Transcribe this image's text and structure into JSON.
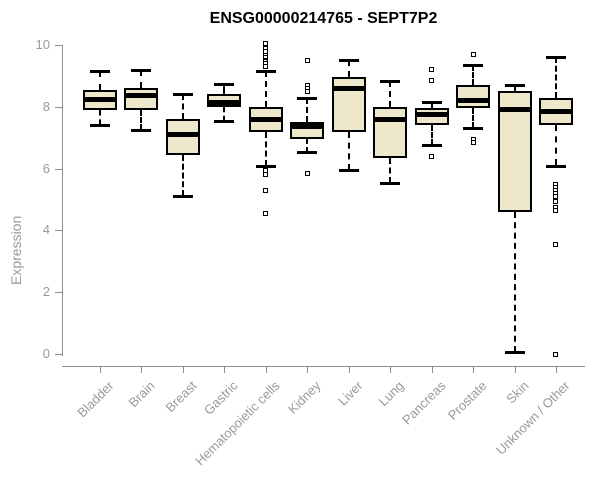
{
  "colors": {
    "box_fill": "#EDE7CC",
    "box_border": "#000000",
    "axis": "#8c8c8c",
    "tick_label": "#9a9a9a",
    "title": "#000000",
    "background": "#ffffff"
  },
  "chart_data": {
    "type": "boxplot",
    "title": "ENSG00000214765 - SEPT7P2",
    "ylabel": "Expression",
    "xlabel": "",
    "ylim": [
      0,
      10
    ],
    "yticks": [
      0,
      2,
      4,
      6,
      8,
      10
    ],
    "grid": false,
    "legend": false,
    "categories": [
      "Bladder",
      "Brain",
      "Breast",
      "Gastric",
      "Hematopoietic cells",
      "Kidney",
      "Liver",
      "Lung",
      "Pancreas",
      "Prostate",
      "Skin",
      "Unknown / Other"
    ],
    "boxes": [
      {
        "label": "Bladder",
        "whislo": 7.4,
        "q1": 7.9,
        "med": 8.25,
        "q3": 8.55,
        "whishi": 9.15,
        "outliers": []
      },
      {
        "label": "Brain",
        "whislo": 7.25,
        "q1": 7.9,
        "med": 8.35,
        "q3": 8.6,
        "whishi": 9.2,
        "outliers": []
      },
      {
        "label": "Breast",
        "whislo": 5.1,
        "q1": 6.45,
        "med": 7.1,
        "q3": 7.6,
        "whishi": 8.4,
        "outliers": []
      },
      {
        "label": "Gastric",
        "whislo": 7.55,
        "q1": 8.0,
        "med": 8.15,
        "q3": 8.4,
        "whishi": 8.75,
        "outliers": []
      },
      {
        "label": "Hematopoietic cells",
        "whislo": 6.1,
        "q1": 7.2,
        "med": 7.6,
        "q3": 8.0,
        "whishi": 9.15,
        "outliers": [
          10.05,
          9.9,
          9.8,
          9.65,
          9.6,
          9.5,
          9.45,
          9.4,
          9.3,
          5.95,
          5.8,
          5.3,
          4.55
        ]
      },
      {
        "label": "Kidney",
        "whislo": 6.55,
        "q1": 6.95,
        "med": 7.35,
        "q3": 7.5,
        "whishi": 8.3,
        "outliers": [
          9.5,
          8.7,
          8.6,
          8.5,
          5.85
        ]
      },
      {
        "label": "Liver",
        "whislo": 5.95,
        "q1": 7.2,
        "med": 8.6,
        "q3": 8.95,
        "whishi": 9.5,
        "outliers": []
      },
      {
        "label": "Lung",
        "whislo": 5.55,
        "q1": 6.35,
        "med": 7.6,
        "q3": 8.0,
        "whishi": 8.85,
        "outliers": []
      },
      {
        "label": "Pancreas",
        "whislo": 6.75,
        "q1": 7.4,
        "med": 7.75,
        "q3": 7.95,
        "whishi": 8.15,
        "outliers": [
          9.2,
          8.85,
          6.4
        ]
      },
      {
        "label": "Prostate",
        "whislo": 7.3,
        "q1": 7.95,
        "med": 8.2,
        "q3": 8.7,
        "whishi": 9.35,
        "outliers": [
          9.7,
          6.95,
          6.85
        ]
      },
      {
        "label": "Skin",
        "whislo": 0.05,
        "q1": 4.6,
        "med": 7.9,
        "q3": 8.5,
        "whishi": 8.7,
        "outliers": []
      },
      {
        "label": "Unknown / Other",
        "whislo": 6.1,
        "q1": 7.4,
        "med": 7.85,
        "q3": 8.3,
        "whishi": 9.6,
        "outliers": [
          5.5,
          5.4,
          5.3,
          5.2,
          5.1,
          4.95,
          4.75,
          4.65,
          3.55,
          0.0
        ]
      }
    ]
  }
}
